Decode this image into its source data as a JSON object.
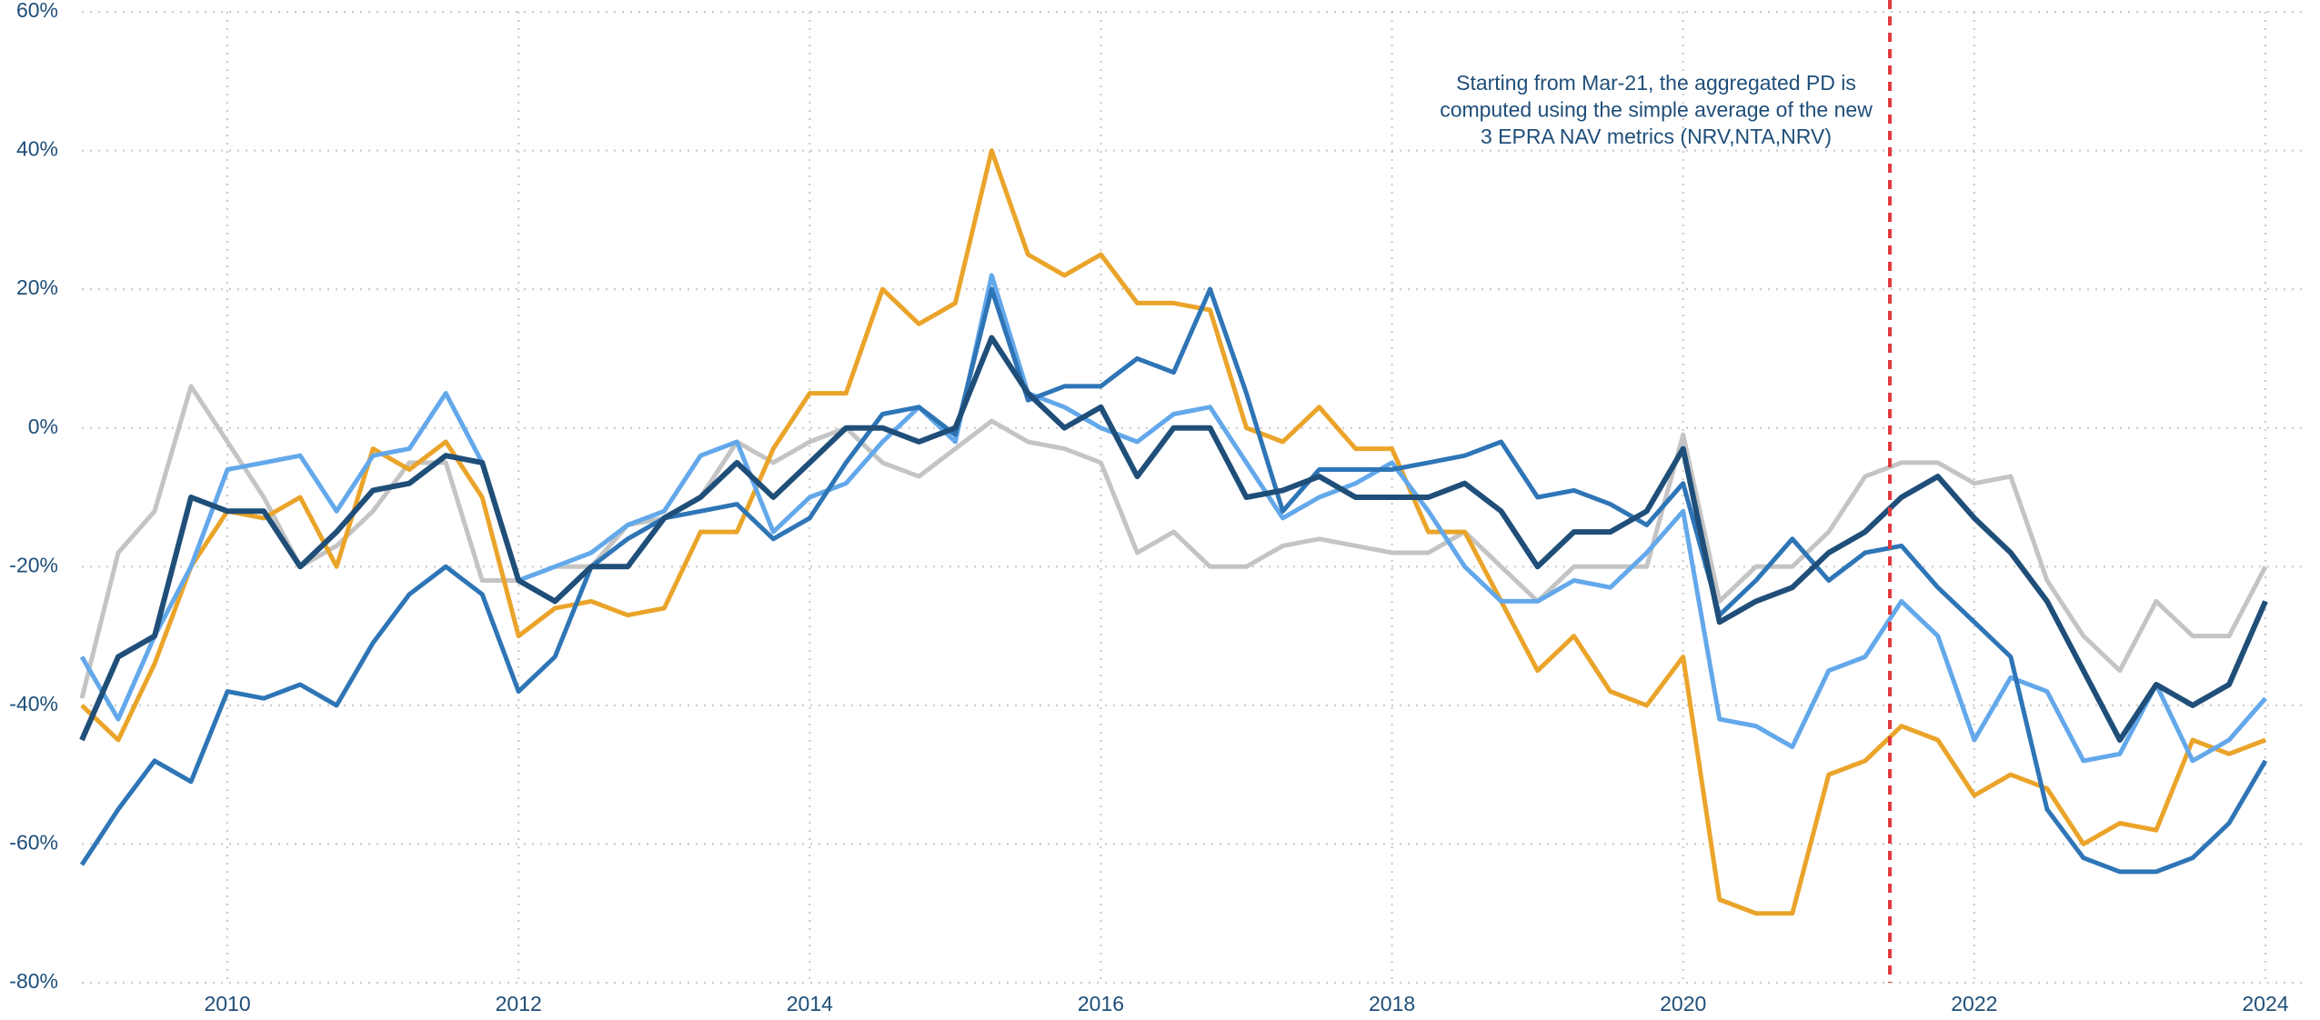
{
  "chart_data": {
    "type": "line",
    "x": [
      2009,
      2009.25,
      2009.5,
      2009.75,
      2010,
      2010.25,
      2010.5,
      2010.75,
      2011,
      2011.25,
      2011.5,
      2011.75,
      2012,
      2012.25,
      2012.5,
      2012.75,
      2013,
      2013.25,
      2013.5,
      2013.75,
      2014,
      2014.25,
      2014.5,
      2014.75,
      2015,
      2015.25,
      2015.5,
      2015.75,
      2016,
      2016.25,
      2016.5,
      2016.75,
      2017,
      2017.25,
      2017.5,
      2017.75,
      2018,
      2018.25,
      2018.5,
      2018.75,
      2019,
      2019.25,
      2019.5,
      2019.75,
      2020,
      2020.25,
      2020.5,
      2020.75,
      2021,
      2021.25,
      2021.5,
      2021.75,
      2022,
      2022.25,
      2022.5,
      2022.75,
      2023,
      2023.25,
      2023.5,
      2023.75,
      2024
    ],
    "series": [
      {
        "color": "#c4c4c4",
        "values": [
          -39,
          -18,
          -12,
          6,
          -2,
          -10,
          -20,
          -17,
          -12,
          -5,
          -5,
          -22,
          -22,
          -20,
          -20,
          -14,
          -13,
          -10,
          -2,
          -5,
          -2,
          0,
          -5,
          -7,
          -3,
          1,
          -2,
          -3,
          -5,
          -18,
          -15,
          -20,
          -20,
          -17,
          -16,
          -17,
          -18,
          -18,
          -15,
          -20,
          -25,
          -20,
          -20,
          -20,
          -1,
          -25,
          -20,
          -20,
          -15,
          -7,
          -5,
          -5,
          -8,
          -7,
          -22,
          -30,
          -35,
          -25,
          -30,
          -30,
          -20
        ]
      },
      {
        "color": "#eaa42a",
        "values": [
          -40,
          -45,
          -34,
          -20,
          -12,
          -13,
          -10,
          -20,
          -3,
          -6,
          -2,
          -10,
          -30,
          -26,
          -25,
          -27,
          -26,
          -15,
          -15,
          -3,
          5,
          5,
          20,
          15,
          18,
          40,
          25,
          22,
          25,
          18,
          18,
          17,
          0,
          -2,
          3,
          -3,
          -3,
          -15,
          -15,
          -25,
          -35,
          -30,
          -38,
          -40,
          -33,
          -68,
          -70,
          -70,
          -50,
          -48,
          -43,
          -45,
          -53,
          -50,
          -52,
          -60,
          -57,
          -58,
          -45,
          -47,
          -45
        ]
      },
      {
        "color": "#63a8ea",
        "values": [
          -33,
          -42,
          -30,
          -20,
          -6,
          -5,
          -4,
          -12,
          -4,
          -3,
          5,
          -5,
          -22,
          -20,
          -18,
          -14,
          -12,
          -4,
          -2,
          -15,
          -10,
          -8,
          -2,
          3,
          -2,
          22,
          5,
          3,
          0,
          -2,
          2,
          3,
          -5,
          -13,
          -10,
          -8,
          -5,
          -12,
          -20,
          -25,
          -25,
          -22,
          -23,
          -18,
          -12,
          -42,
          -43,
          -46,
          -35,
          -33,
          -25,
          -30,
          -45,
          -36,
          -38,
          -48,
          -47,
          -37,
          -48,
          -45,
          -39
        ]
      },
      {
        "color": "#2e75b6",
        "values": [
          -63,
          -55,
          -48,
          -51,
          -38,
          -39,
          -37,
          -40,
          -31,
          -24,
          -20,
          -24,
          -38,
          -33,
          -20,
          -16,
          -13,
          -12,
          -11,
          -16,
          -13,
          -5,
          2,
          3,
          -1,
          20,
          4,
          6,
          6,
          10,
          8,
          20,
          5,
          -12,
          -6,
          -6,
          -6,
          -5,
          -4,
          -2,
          -10,
          -9,
          -11,
          -14,
          -8,
          -27,
          -22,
          -16,
          -22,
          -18,
          -17,
          -23,
          -28,
          -33,
          -55,
          -62,
          -64,
          -64,
          -62,
          -57,
          -48
        ]
      },
      {
        "color": "#1f4e79",
        "values": [
          -45,
          -33,
          -30,
          -10,
          -12,
          -12,
          -20,
          -15,
          -9,
          -8,
          -4,
          -5,
          -22,
          -25,
          -20,
          -20,
          -13,
          -10,
          -5,
          -10,
          -5,
          0,
          0,
          -2,
          0,
          13,
          5,
          0,
          3,
          -7,
          0,
          0,
          -10,
          -9,
          -7,
          -10,
          -10,
          -10,
          -8,
          -12,
          -20,
          -15,
          -15,
          -12,
          -3,
          -28,
          -25,
          -23,
          -18,
          -15,
          -10,
          -7,
          -13,
          -18,
          -25,
          -35,
          -45,
          -37,
          -40,
          -37,
          -25
        ]
      }
    ],
    "xlim": [
      2009,
      2024.25
    ],
    "xticks": [
      2010,
      2012,
      2014,
      2016,
      2018,
      2020,
      2022,
      2024
    ],
    "ylim": [
      -80,
      60
    ],
    "yticks": [
      {
        "value": -80,
        "label": "-80%"
      },
      {
        "value": -60,
        "label": "-60%"
      },
      {
        "value": -40,
        "label": "-40%"
      },
      {
        "value": -20,
        "label": "-20%"
      },
      {
        "value": 0,
        "label": "0%"
      },
      {
        "value": 20,
        "label": "20%"
      },
      {
        "value": 40,
        "label": "40%"
      },
      {
        "value": 60,
        "label": "60%"
      }
    ],
    "grid": true,
    "vline": {
      "x": 2021.42,
      "color": "#e0393e"
    },
    "annotation": [
      "Starting from Mar-21, the aggregated PD is",
      "computed using the simple average of the new",
      "3 EPRA NAV metrics (NRV,NTA,NRV)"
    ]
  }
}
